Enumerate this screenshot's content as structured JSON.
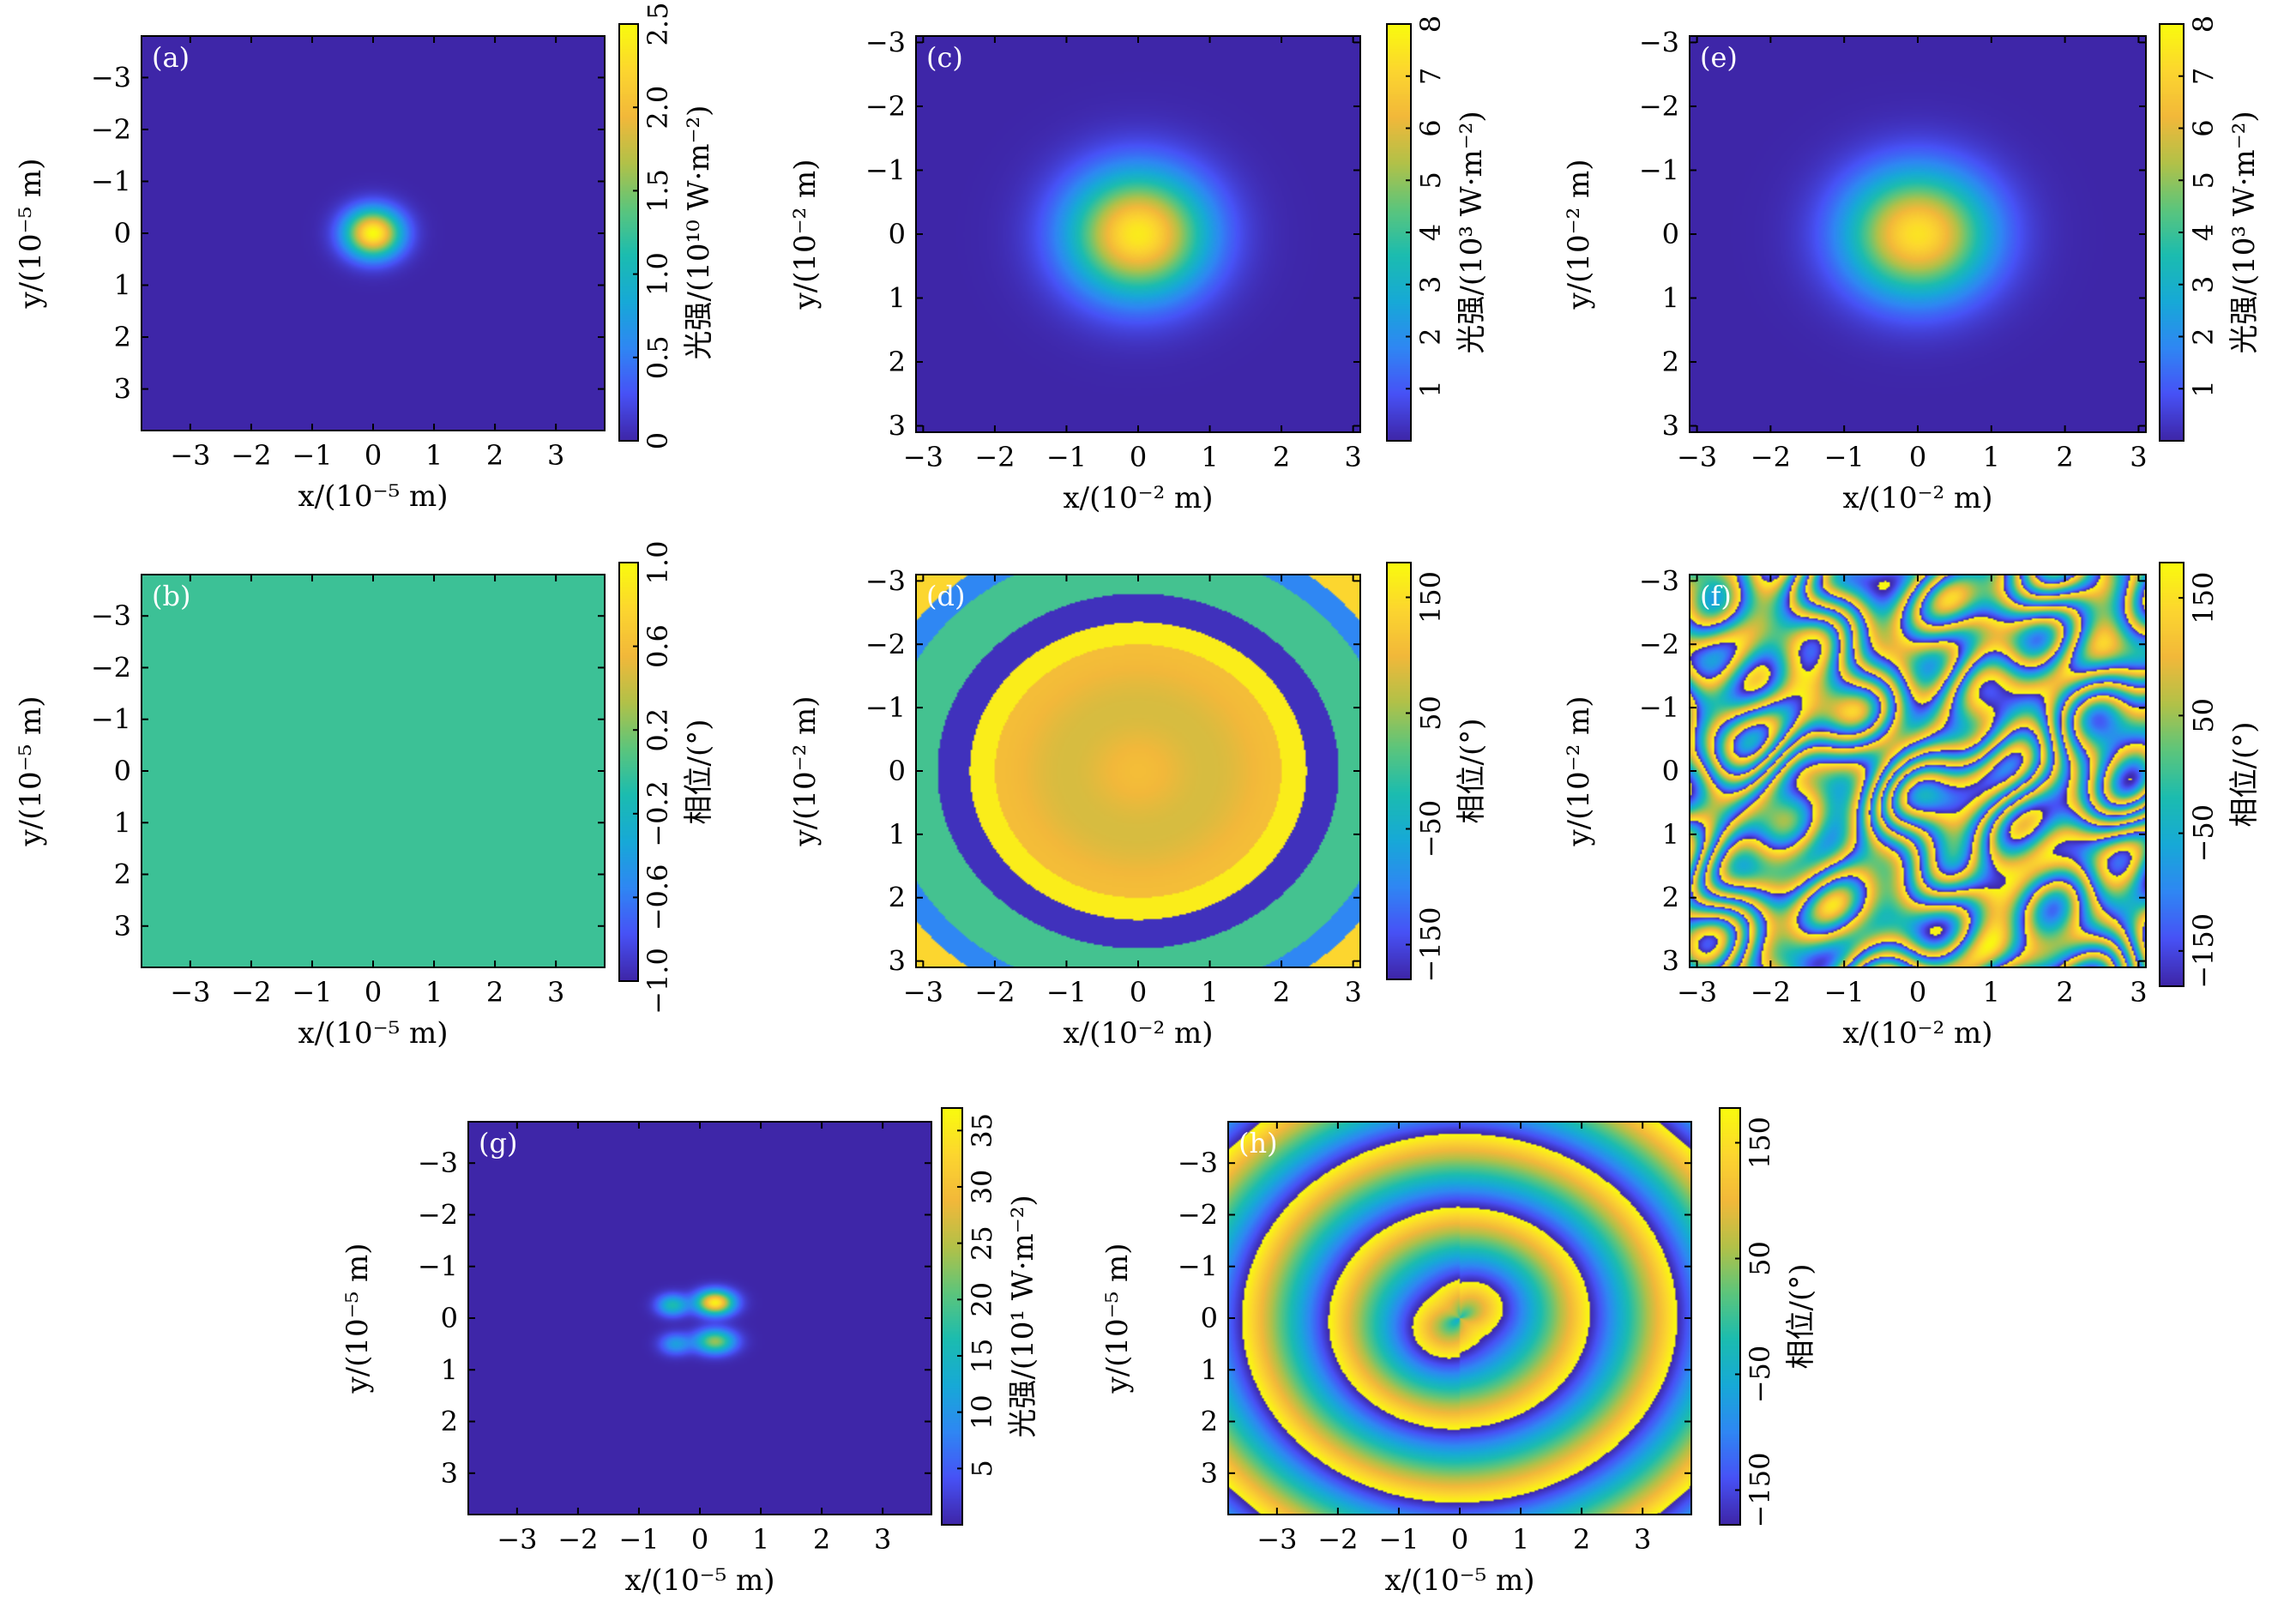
{
  "colormap": [
    "#3e26a8",
    "#4752f6",
    "#2f87f3",
    "#17a9d7",
    "#1bbcb0",
    "#5cc57c",
    "#b2c148",
    "#f2b83a",
    "#fcd62f",
    "#f9fb0e"
  ],
  "chart_data": [
    {
      "type": "heatmap",
      "panel": "(a)",
      "pattern": "gaussian_spot",
      "xlabel": "x/(10⁻⁵ m)",
      "ylabel": "y/(10⁻⁵ m)",
      "xlim": [
        -3.8,
        3.8
      ],
      "ylim": [
        -3.8,
        3.8
      ],
      "xticks": [
        "−3",
        "−2",
        "−1",
        "0",
        "1",
        "2",
        "3"
      ],
      "yticks": [
        "−3",
        "−2",
        "−1",
        "0",
        "1",
        "2",
        "3"
      ],
      "colorbar": {
        "label": "光强/(10¹⁰ W·m⁻²)",
        "range": [
          0,
          2.5
        ],
        "ticks": [
          "0",
          "0.5",
          "1.0",
          "1.5",
          "2.0",
          "2.5"
        ]
      },
      "peak": 2.5,
      "beam_radius": 0.45
    },
    {
      "type": "heatmap",
      "panel": "(b)",
      "pattern": "uniform",
      "xlabel": "x/(10⁻⁵ m)",
      "ylabel": "y/(10⁻⁵ m)",
      "xlim": [
        -3.8,
        3.8
      ],
      "ylim": [
        -3.8,
        3.8
      ],
      "xticks": [
        "−3",
        "−2",
        "−1",
        "0",
        "1",
        "2",
        "3"
      ],
      "yticks": [
        "−3",
        "−2",
        "−1",
        "0",
        "1",
        "2",
        "3"
      ],
      "colorbar": {
        "label": "相位/(°)",
        "range": [
          -1.0,
          1.0
        ],
        "ticks": [
          "−1.0",
          "−0.6",
          "−0.2",
          "0.2",
          "0.6",
          "1.0"
        ]
      },
      "value": 0
    },
    {
      "type": "heatmap",
      "panel": "(c)",
      "pattern": "gaussian_spot",
      "xlabel": "x/(10⁻² m)",
      "ylabel": "y/(10⁻² m)",
      "xlim": [
        -3.1,
        3.1
      ],
      "ylim": [
        -3.1,
        3.1
      ],
      "xticks": [
        "−3",
        "−2",
        "−1",
        "0",
        "1",
        "2",
        "3"
      ],
      "yticks": [
        "−3",
        "−2",
        "−1",
        "0",
        "1",
        "2",
        "3"
      ],
      "colorbar": {
        "label": "光强/(10³ W·m⁻²)",
        "range": [
          0,
          8
        ],
        "ticks": [
          "1",
          "2",
          "3",
          "4",
          "5",
          "6",
          "7",
          "8"
        ]
      },
      "peak": 7.6,
      "beam_radius": 0.95
    },
    {
      "type": "heatmap",
      "panel": "(d)",
      "pattern": "concentric_rings",
      "xlabel": "x/(10⁻² m)",
      "ylabel": "y/(10⁻² m)",
      "xlim": [
        -3.1,
        3.1
      ],
      "ylim": [
        -3.1,
        3.1
      ],
      "xticks": [
        "−3",
        "−2",
        "−1",
        "0",
        "1",
        "2",
        "3"
      ],
      "yticks": [
        "−3",
        "−2",
        "−1",
        "0",
        "1",
        "2",
        "3"
      ],
      "colorbar": {
        "label": "相位/(°)",
        "range": [
          -180,
          180
        ],
        "ticks": [
          "−150",
          "−50",
          "50",
          "150"
        ]
      }
    },
    {
      "type": "heatmap",
      "panel": "(e)",
      "pattern": "gaussian_spot",
      "xlabel": "x/(10⁻² m)",
      "ylabel": "y/(10⁻² m)",
      "xlim": [
        -3.1,
        3.1
      ],
      "ylim": [
        -3.1,
        3.1
      ],
      "xticks": [
        "−3",
        "−2",
        "−1",
        "0",
        "1",
        "2",
        "3"
      ],
      "yticks": [
        "−3",
        "−2",
        "−1",
        "0",
        "1",
        "2",
        "3"
      ],
      "colorbar": {
        "label": "光强/(10³ W·m⁻²)",
        "range": [
          0,
          8
        ],
        "ticks": [
          "1",
          "2",
          "3",
          "4",
          "5",
          "6",
          "7",
          "8"
        ]
      },
      "peak": 7.4,
      "beam_radius": 0.95
    },
    {
      "type": "heatmap",
      "panel": "(f)",
      "pattern": "random_phase",
      "xlabel": "x/(10⁻² m)",
      "ylabel": "y/(10⁻² m)",
      "xlim": [
        -3.1,
        3.1
      ],
      "ylim": [
        -3.1,
        3.1
      ],
      "xticks": [
        "−3",
        "−2",
        "−1",
        "0",
        "1",
        "2",
        "3"
      ],
      "yticks": [
        "−3",
        "−2",
        "−1",
        "0",
        "1",
        "2",
        "3"
      ],
      "colorbar": {
        "label": "相位/(°)",
        "range": [
          -180,
          180
        ],
        "ticks": [
          "−150",
          "−50",
          "50",
          "150"
        ]
      }
    },
    {
      "type": "heatmap",
      "panel": "(g)",
      "pattern": "double_lobe",
      "xlabel": "x/(10⁻⁵ m)",
      "ylabel": "y/(10⁻⁵ m)",
      "xlim": [
        -3.8,
        3.8
      ],
      "ylim": [
        -3.8,
        3.8
      ],
      "xticks": [
        "−3",
        "−2",
        "−1",
        "0",
        "1",
        "2",
        "3"
      ],
      "yticks": [
        "−3",
        "−2",
        "−1",
        "0",
        "1",
        "2",
        "3"
      ],
      "colorbar": {
        "label": "光强/(10¹ W·m⁻²)",
        "range": [
          0,
          37
        ],
        "ticks": [
          "5",
          "10",
          "15",
          "20",
          "25",
          "30",
          "35"
        ]
      },
      "peak": 36
    },
    {
      "type": "heatmap",
      "panel": "(h)",
      "pattern": "ring_vortex_phase",
      "xlabel": "x/(10⁻⁵ m)",
      "ylabel": "y/(10⁻⁵ m)",
      "xlim": [
        -3.8,
        3.8
      ],
      "ylim": [
        -3.8,
        3.8
      ],
      "xticks": [
        "−3",
        "−2",
        "−1",
        "0",
        "1",
        "2",
        "3"
      ],
      "yticks": [
        "−3",
        "−2",
        "−1",
        "0",
        "1",
        "2",
        "3"
      ],
      "colorbar": {
        "label": "相位/(°)",
        "range": [
          -180,
          180
        ],
        "ticks": [
          "−150",
          "−50",
          "50",
          "150"
        ]
      }
    }
  ]
}
